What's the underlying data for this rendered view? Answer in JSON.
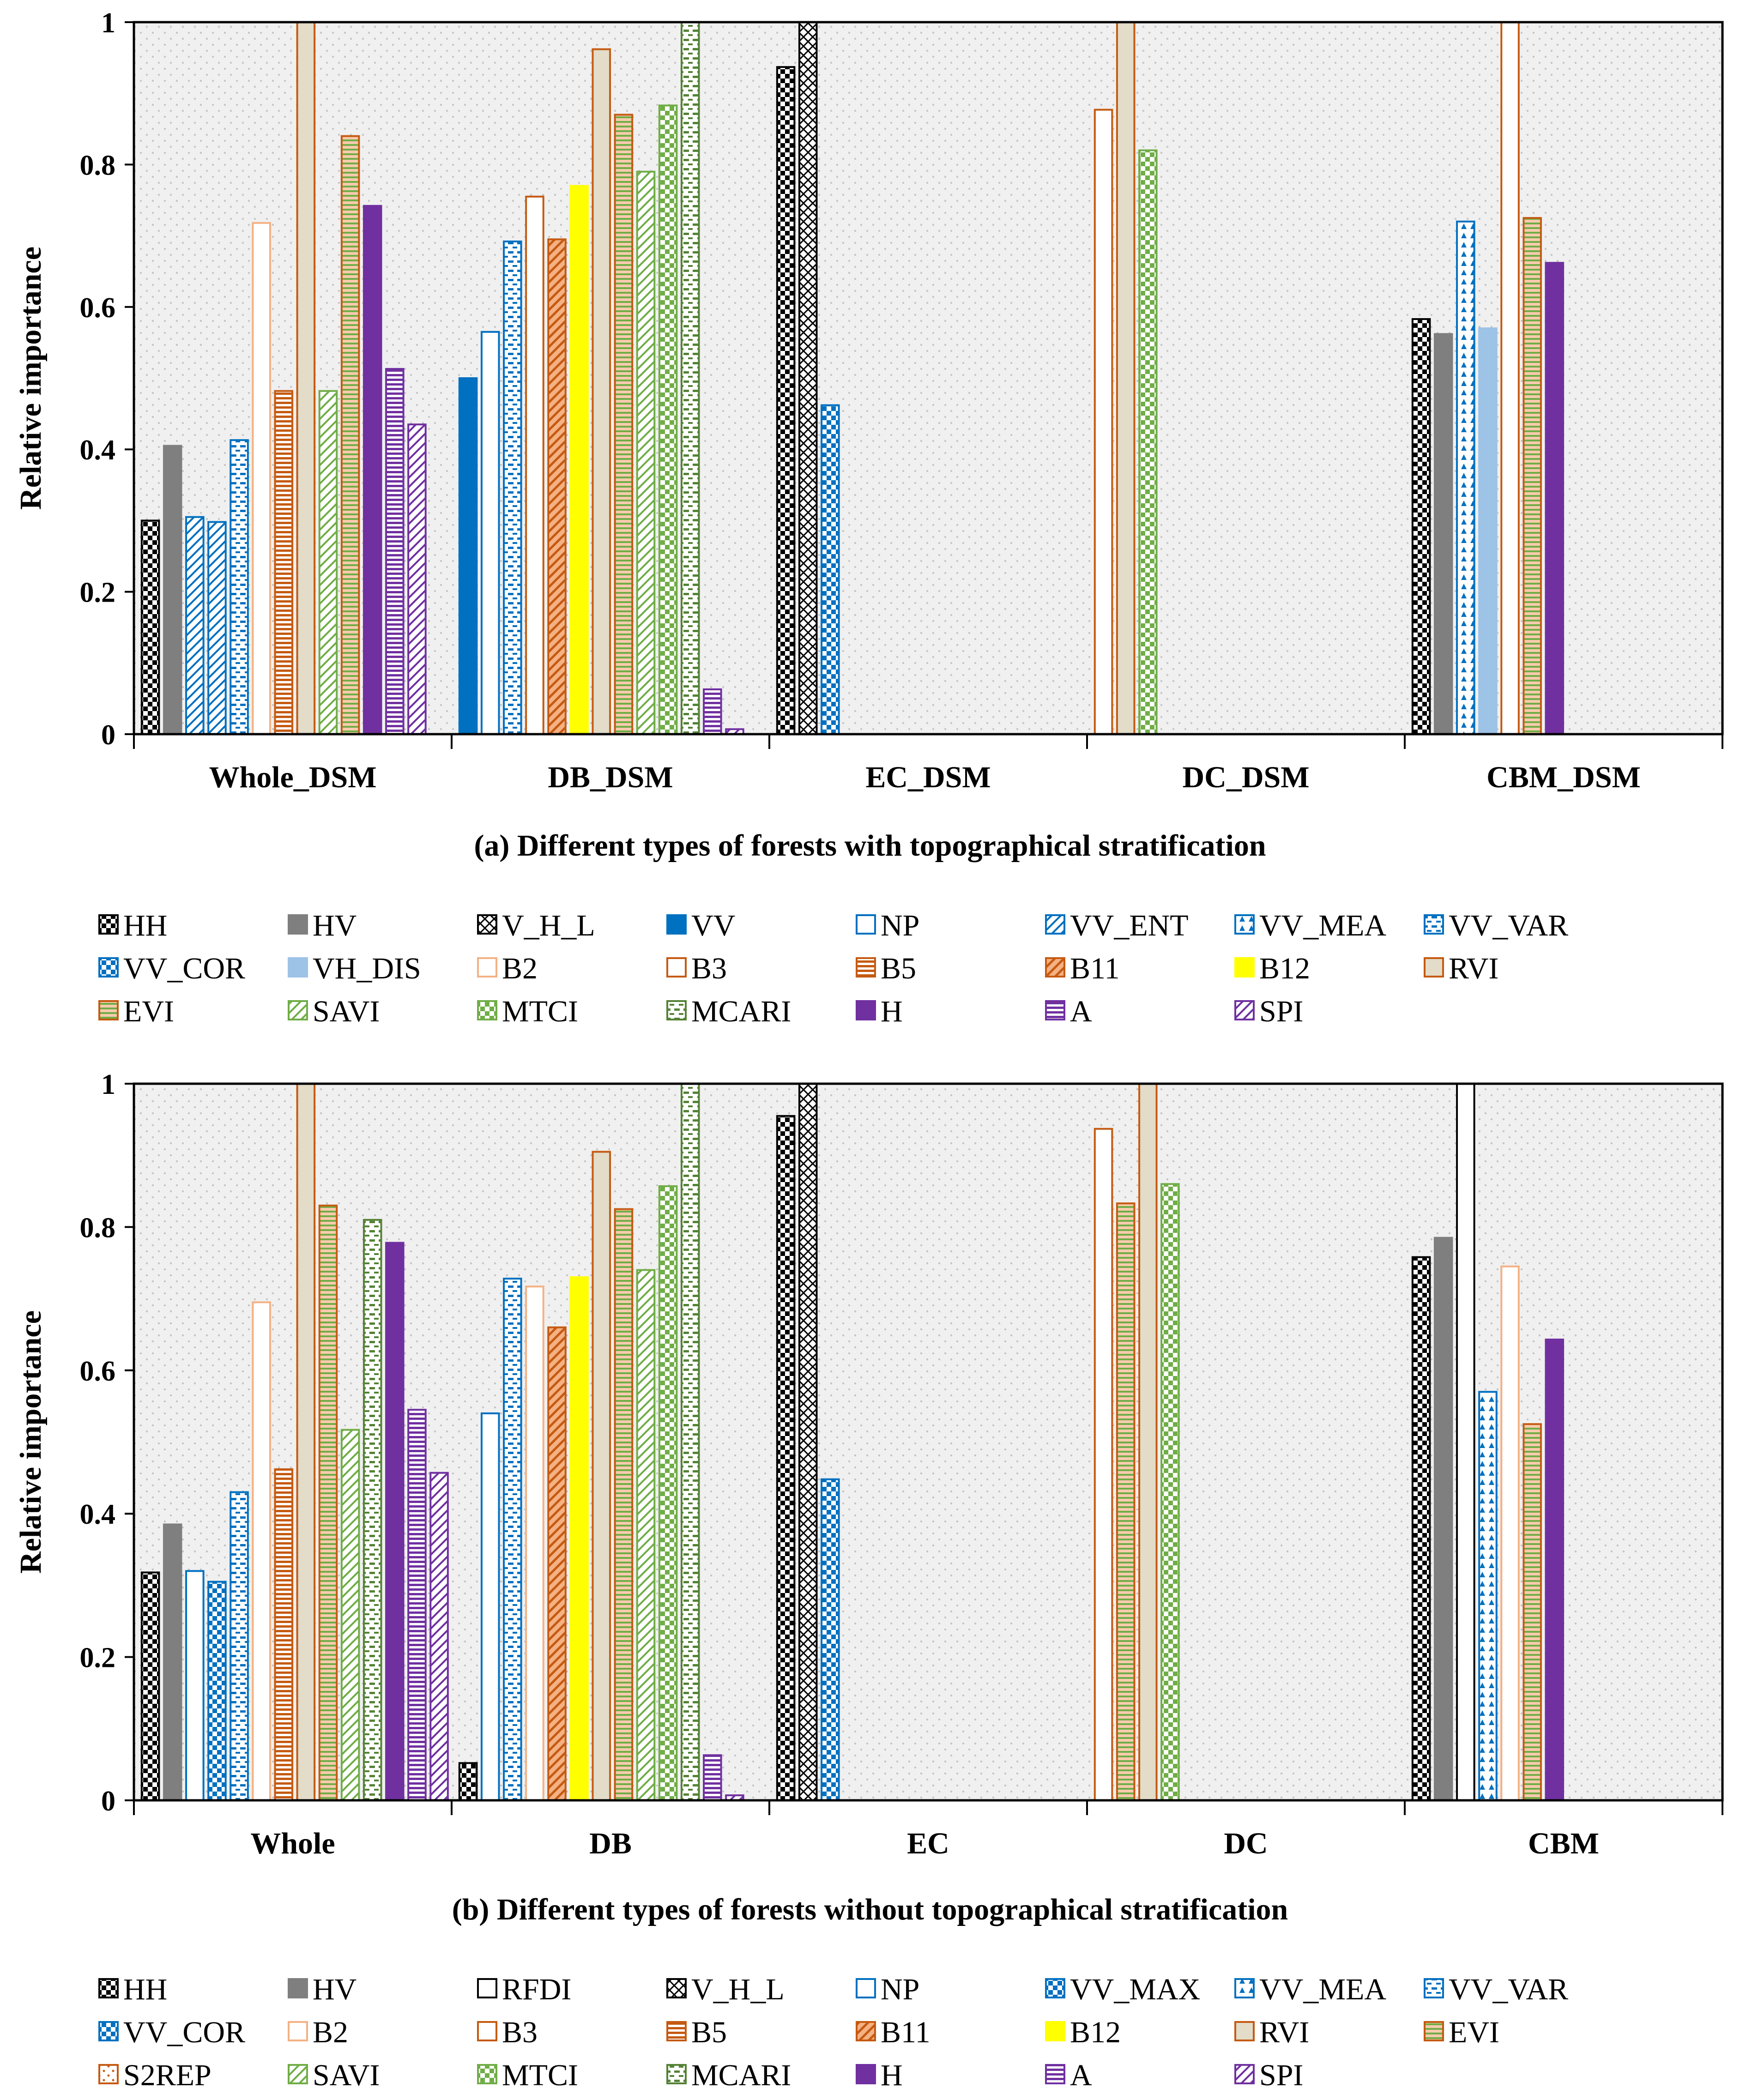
{
  "colors": {
    "plot_bg": "#f0f0f0",
    "dot": "#c4c4c4",
    "blue": "#0070c0",
    "lightblue": "#9dc3e6",
    "orange": "#c55a11",
    "lightorange": "#f4b183",
    "yellow": "#ffff00",
    "green": "#70ad47",
    "darkgreen": "#548235",
    "purple": "#7030a0",
    "black": "#000000",
    "gray": "#7f7f7f",
    "beige": "#e2dcc8"
  },
  "series_styles": {
    "HH": {
      "fill": "#000000",
      "pattern": "checker",
      "half": true
    },
    "HV": {
      "fill": "#7f7f7f",
      "pattern": "solid"
    },
    "RFDI": {
      "fill": "#000000",
      "pattern": "none"
    },
    "V_H_L": {
      "fill": "#000000",
      "pattern": "xhatch"
    },
    "VV": {
      "fill": "#0070c0",
      "pattern": "solid"
    },
    "NP": {
      "fill": "#0070c0",
      "pattern": "none"
    },
    "VV_ENT": {
      "fill": "#0070c0",
      "pattern": "diag"
    },
    "VV_MAX": {
      "fill": "#0070c0",
      "pattern": "checker"
    },
    "VV_MEA": {
      "fill": "#0070c0",
      "pattern": "tri"
    },
    "VV_VAR": {
      "fill": "#0070c0",
      "pattern": "hdash"
    },
    "VV_COR": {
      "fill": "#0070c0",
      "pattern": "checker"
    },
    "VH_DIS": {
      "fill": "#9dc3e6",
      "pattern": "solid"
    },
    "B2": {
      "fill": "#f4b183",
      "pattern": "none"
    },
    "B3": {
      "fill": "#c55a11",
      "pattern": "none"
    },
    "B5": {
      "fill": "#c55a11",
      "pattern": "hline"
    },
    "B11": {
      "fill": "#c55a11",
      "pattern": "diag2"
    },
    "B12": {
      "fill": "#ffff00",
      "pattern": "solid"
    },
    "RVI": {
      "fill": "#e2dcc8",
      "pattern": "solid"
    },
    "EVI": {
      "fill": "#c55a11",
      "pattern": "hlinegreen"
    },
    "S2REP": {
      "fill": "#c55a11",
      "pattern": "dots"
    },
    "SAVI": {
      "fill": "#70ad47",
      "pattern": "diag"
    },
    "MTCI": {
      "fill": "#70ad47",
      "pattern": "checker"
    },
    "MCARI": {
      "fill": "#548235",
      "pattern": "hdash"
    },
    "H": {
      "fill": "#7030a0",
      "pattern": "solid"
    },
    "A": {
      "fill": "#7030a0",
      "pattern": "hline"
    },
    "SPI": {
      "fill": "#7030a0",
      "pattern": "diag"
    }
  },
  "chart_data": [
    {
      "type": "bar",
      "title": "(a) Different types of forests with topographical stratification",
      "xlabel": "",
      "ylabel": "Relative importance",
      "ylim": [
        0,
        1
      ],
      "yticks": [
        "0",
        "0.2",
        "0.4",
        "0.6",
        "0.8",
        "1"
      ],
      "categories": [
        "Whole_DSM",
        "DB_DSM",
        "EC_DSM",
        "DC_DSM",
        "CBM_DSM"
      ],
      "legend": [
        "HH",
        "HV",
        "V_H_L",
        "VV",
        "NP",
        "VV_ENT",
        "VV_MEA",
        "VV_VAR",
        "VV_COR",
        "VH_DIS",
        "B2",
        "B3",
        "B5",
        "B11",
        "B12",
        "RVI",
        "EVI",
        "SAVI",
        "MTCI",
        "MCARI",
        "H",
        "A",
        "SPI"
      ],
      "groups": [
        {
          "category": "Whole_DSM",
          "bars": [
            {
              "series": "HH",
              "value": 0.3
            },
            {
              "series": "HV",
              "value": 0.405
            },
            {
              "series": "VV_ENT",
              "value": 0.305
            },
            {
              "series": "VV_ENT",
              "value": 0.298
            },
            {
              "series": "VV_VAR",
              "value": 0.413
            },
            {
              "series": "B2",
              "value": 0.718
            },
            {
              "series": "B5",
              "value": 0.482
            },
            {
              "series": "RVI",
              "value": 1.0
            },
            {
              "series": "SAVI",
              "value": 0.482
            },
            {
              "series": "EVI",
              "value": 0.84
            },
            {
              "series": "H",
              "value": 0.742
            },
            {
              "series": "A",
              "value": 0.513
            },
            {
              "series": "SPI",
              "value": 0.435
            }
          ]
        },
        {
          "category": "DB_DSM",
          "bars": [
            {
              "series": "VV",
              "value": 0.5
            },
            {
              "series": "NP",
              "value": 0.565
            },
            {
              "series": "VV_VAR",
              "value": 0.692
            },
            {
              "series": "B3",
              "value": 0.755
            },
            {
              "series": "B11",
              "value": 0.695
            },
            {
              "series": "B12",
              "value": 0.77
            },
            {
              "series": "RVI",
              "value": 0.962
            },
            {
              "series": "EVI",
              "value": 0.87
            },
            {
              "series": "SAVI",
              "value": 0.79
            },
            {
              "series": "MTCI",
              "value": 0.883
            },
            {
              "series": "MCARI",
              "value": 1.0
            },
            {
              "series": "A",
              "value": 0.063
            },
            {
              "series": "SPI",
              "value": 0.007
            }
          ]
        },
        {
          "category": "EC_DSM",
          "bars": [
            {
              "series": "HH",
              "value": 0.937
            },
            {
              "series": "V_H_L",
              "value": 1.0
            },
            {
              "series": "VV_COR",
              "value": 0.462
            }
          ]
        },
        {
          "category": "DC_DSM",
          "bars": [
            {
              "series": "B3",
              "value": 0.877
            },
            {
              "series": "RVI",
              "value": 1.0
            },
            {
              "series": "MTCI",
              "value": 0.82
            }
          ]
        },
        {
          "category": "CBM_DSM",
          "bars": [
            {
              "series": "HH",
              "value": 0.583
            },
            {
              "series": "HV",
              "value": 0.562
            },
            {
              "series": "VV_MEA",
              "value": 0.72
            },
            {
              "series": "VH_DIS",
              "value": 0.57
            },
            {
              "series": "B3",
              "value": 1.0
            },
            {
              "series": "EVI",
              "value": 0.725
            },
            {
              "series": "H",
              "value": 0.662
            }
          ]
        }
      ]
    },
    {
      "type": "bar",
      "title": "(b) Different types of forests without topographical stratification",
      "xlabel": "",
      "ylabel": "Relative importance",
      "ylim": [
        0,
        1
      ],
      "yticks": [
        "0",
        "0.2",
        "0.4",
        "0.6",
        "0.8",
        "1"
      ],
      "categories": [
        "Whole",
        "DB",
        "EC",
        "DC",
        "CBM"
      ],
      "legend": [
        "HH",
        "HV",
        "RFDI",
        "V_H_L",
        "NP",
        "VV_MAX",
        "VV_MEA",
        "VV_VAR",
        "VV_COR",
        "B2",
        "B3",
        "B5",
        "B11",
        "B12",
        "RVI",
        "EVI",
        "S2REP",
        "SAVI",
        "MTCI",
        "MCARI",
        "H",
        "A",
        "SPI"
      ],
      "groups": [
        {
          "category": "Whole",
          "bars": [
            {
              "series": "HH",
              "value": 0.318
            },
            {
              "series": "HV",
              "value": 0.385
            },
            {
              "series": "NP",
              "value": 0.32
            },
            {
              "series": "VV_MAX",
              "value": 0.305
            },
            {
              "series": "VV_VAR",
              "value": 0.43
            },
            {
              "series": "B2",
              "value": 0.695
            },
            {
              "series": "B5",
              "value": 0.462
            },
            {
              "series": "RVI",
              "value": 1.0
            },
            {
              "series": "EVI",
              "value": 0.83
            },
            {
              "series": "SAVI",
              "value": 0.517
            },
            {
              "series": "MCARI",
              "value": 0.81
            },
            {
              "series": "H",
              "value": 0.778
            },
            {
              "series": "A",
              "value": 0.545
            },
            {
              "series": "SPI",
              "value": 0.457
            }
          ]
        },
        {
          "category": "DB",
          "bars": [
            {
              "series": "HH",
              "value": 0.052
            },
            {
              "series": "NP",
              "value": 0.54
            },
            {
              "series": "VV_VAR",
              "value": 0.728
            },
            {
              "series": "B2",
              "value": 0.717
            },
            {
              "series": "B11",
              "value": 0.66
            },
            {
              "series": "B12",
              "value": 0.73
            },
            {
              "series": "RVI",
              "value": 0.905
            },
            {
              "series": "EVI",
              "value": 0.825
            },
            {
              "series": "SAVI",
              "value": 0.74
            },
            {
              "series": "MTCI",
              "value": 0.857
            },
            {
              "series": "MCARI",
              "value": 1.0
            },
            {
              "series": "A",
              "value": 0.063
            },
            {
              "series": "SPI",
              "value": 0.007
            }
          ]
        },
        {
          "category": "EC",
          "bars": [
            {
              "series": "HH",
              "value": 0.955
            },
            {
              "series": "V_H_L",
              "value": 1.0
            },
            {
              "series": "VV_COR",
              "value": 0.448
            }
          ]
        },
        {
          "category": "DC",
          "bars": [
            {
              "series": "B3",
              "value": 0.937
            },
            {
              "series": "EVI",
              "value": 0.833
            },
            {
              "series": "RVI",
              "value": 1.0
            },
            {
              "series": "MTCI",
              "value": 0.86
            }
          ]
        },
        {
          "category": "CBM",
          "bars": [
            {
              "series": "HH",
              "value": 0.758
            },
            {
              "series": "HV",
              "value": 0.785
            },
            {
              "series": "RFDI",
              "value": 1.0
            },
            {
              "series": "VV_MEA",
              "value": 0.57
            },
            {
              "series": "B2",
              "value": 0.745
            },
            {
              "series": "EVI",
              "value": 0.525
            },
            {
              "series": "H",
              "value": 0.643
            }
          ]
        }
      ]
    }
  ]
}
